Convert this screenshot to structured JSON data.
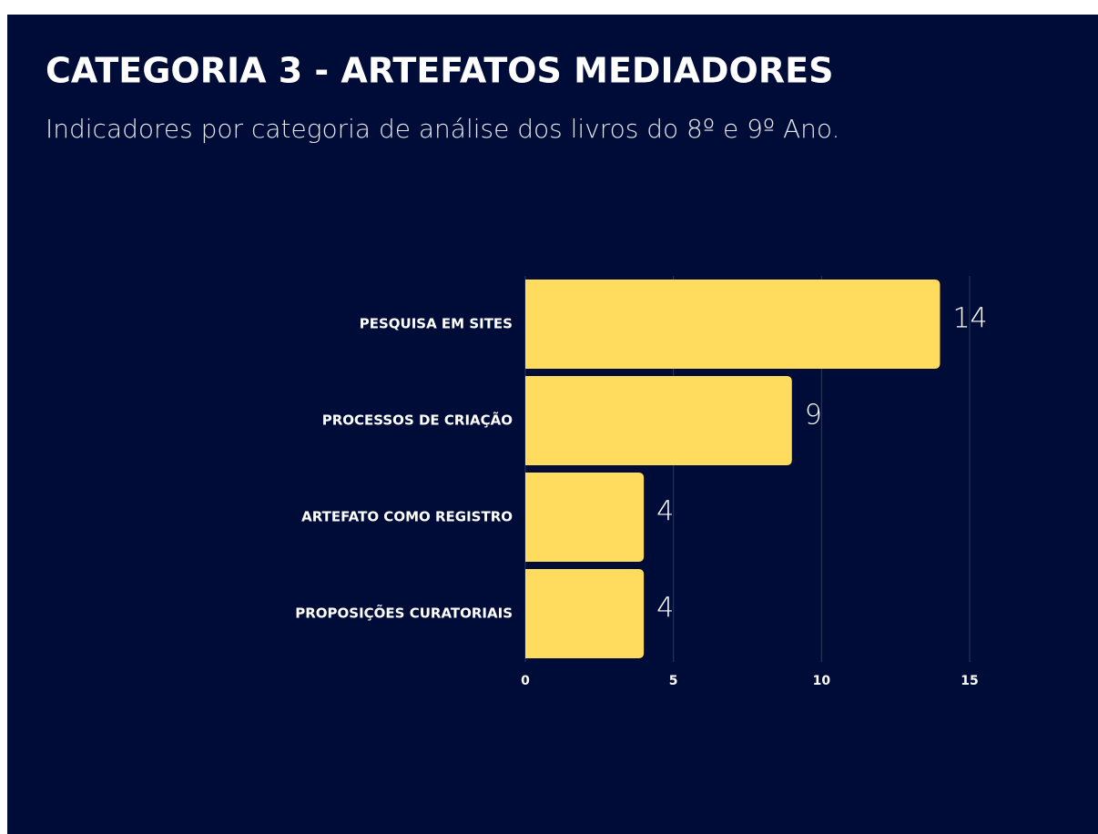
{
  "chart_data": {
    "type": "bar",
    "orientation": "horizontal",
    "title": "CATEGORIA 3 - ARTEFATOS MEDIADORES",
    "subtitle": "Indicadores  por categoria de análise dos livros do 8º e 9º Ano.",
    "categories": [
      "PESQUISA EM SITES",
      "PROCESSOS DE CRIAÇÃO",
      "ARTEFATO COMO REGISTRO",
      "PROPOSIÇÕES CURATORIAIS"
    ],
    "values": [
      14,
      9,
      4,
      4
    ],
    "color": "#ffdc5e",
    "xlim": [
      0,
      15
    ],
    "xticks": [
      0,
      5,
      10,
      15
    ],
    "grid": true
  }
}
